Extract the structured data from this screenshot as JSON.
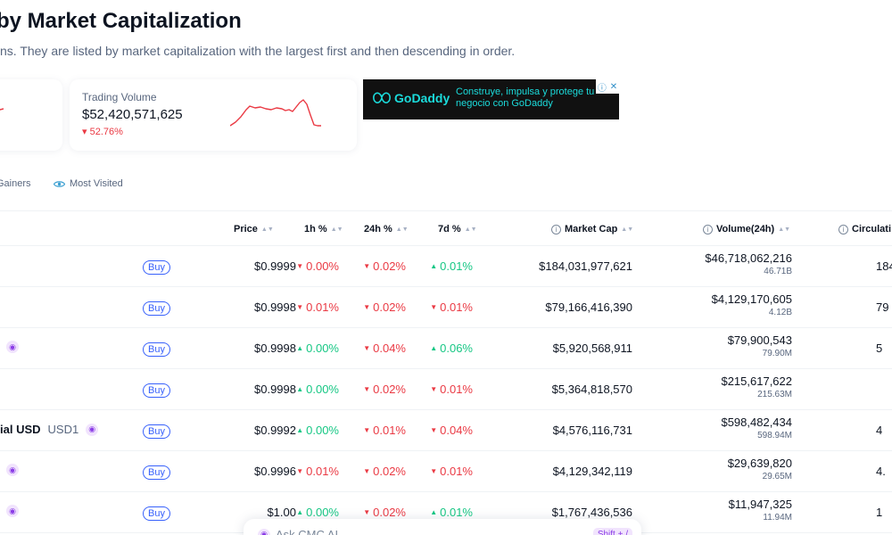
{
  "header": {
    "title": "by Market Capitalization",
    "subtitle": "ns. They are listed by market capitalization with the largest first and then descending in order."
  },
  "cards": {
    "volume": {
      "label": "Trading Volume",
      "value": "$52,420,571,625",
      "change": "52.76%",
      "change_direction": "down"
    }
  },
  "ad": {
    "brand": "GoDaddy",
    "text": "Construye, impulsa y protege tu negocio con GoDaddy"
  },
  "filters": {
    "gainers": "Gainers",
    "most_visited": "Most Visited"
  },
  "table": {
    "headers": {
      "price": "Price",
      "h1": "1h %",
      "h24": "24h %",
      "d7": "7d %",
      "market_cap": "Market Cap",
      "volume": "Volume(24h)",
      "circulating": "Circulati"
    },
    "buy_label": "Buy",
    "rows": [
      {
        "name": "",
        "symbol": "",
        "price": "$0.9999",
        "h1": "0.00%",
        "h1_dir": "down",
        "h24": "0.02%",
        "h24_dir": "down",
        "d7": "0.01%",
        "d7_dir": "up",
        "market_cap": "$184,031,977,621",
        "volume": "$46,718,062,216",
        "volume_sub": "46.71B",
        "circ": "184"
      },
      {
        "name": "",
        "symbol": "",
        "price": "$0.9998",
        "h1": "0.01%",
        "h1_dir": "down",
        "h24": "0.02%",
        "h24_dir": "down",
        "d7": "0.01%",
        "d7_dir": "down",
        "market_cap": "$79,166,416,390",
        "volume": "$4,129,170,605",
        "volume_sub": "4.12B",
        "circ": "79"
      },
      {
        "name": "",
        "symbol": "",
        "price": "$0.9998",
        "h1": "0.00%",
        "h1_dir": "up",
        "h24": "0.04%",
        "h24_dir": "down",
        "d7": "0.06%",
        "d7_dir": "up",
        "market_cap": "$5,920,568,911",
        "volume": "$79,900,543",
        "volume_sub": "79.90M",
        "circ": "5"
      },
      {
        "name": "",
        "symbol": "",
        "price": "$0.9998",
        "h1": "0.00%",
        "h1_dir": "up",
        "h24": "0.02%",
        "h24_dir": "down",
        "d7": "0.01%",
        "d7_dir": "down",
        "market_cap": "$5,364,818,570",
        "volume": "$215,617,622",
        "volume_sub": "215.63M",
        "circ": ""
      },
      {
        "name": "ial USD",
        "symbol": "USD1",
        "price": "$0.9992",
        "h1": "0.00%",
        "h1_dir": "up",
        "h24": "0.01%",
        "h24_dir": "down",
        "d7": "0.04%",
        "d7_dir": "down",
        "market_cap": "$4,576,116,731",
        "volume": "$598,482,434",
        "volume_sub": "598.94M",
        "circ": "4"
      },
      {
        "name": "",
        "symbol": "",
        "price": "$0.9996",
        "h1": "0.01%",
        "h1_dir": "down",
        "h24": "0.02%",
        "h24_dir": "down",
        "d7": "0.01%",
        "d7_dir": "down",
        "market_cap": "$4,129,342,119",
        "volume": "$29,639,820",
        "volume_sub": "29.65M",
        "circ": "4."
      },
      {
        "name": "",
        "symbol": "",
        "price": "$1.00",
        "h1": "0.00%",
        "h1_dir": "up",
        "h24": "0.02%",
        "h24_dir": "down",
        "d7": "0.01%",
        "d7_dir": "up",
        "market_cap": "$1,767,436,536",
        "volume": "$11,947,325",
        "volume_sub": "11.94M",
        "circ": "1"
      }
    ]
  },
  "ask": {
    "placeholder": "Ask CMC AI",
    "shortcut": "Shift + /"
  },
  "colors": {
    "up": "#16c784",
    "down": "#ea3943",
    "accent": "#3861fb",
    "ad_text": "#1bdbdb"
  }
}
